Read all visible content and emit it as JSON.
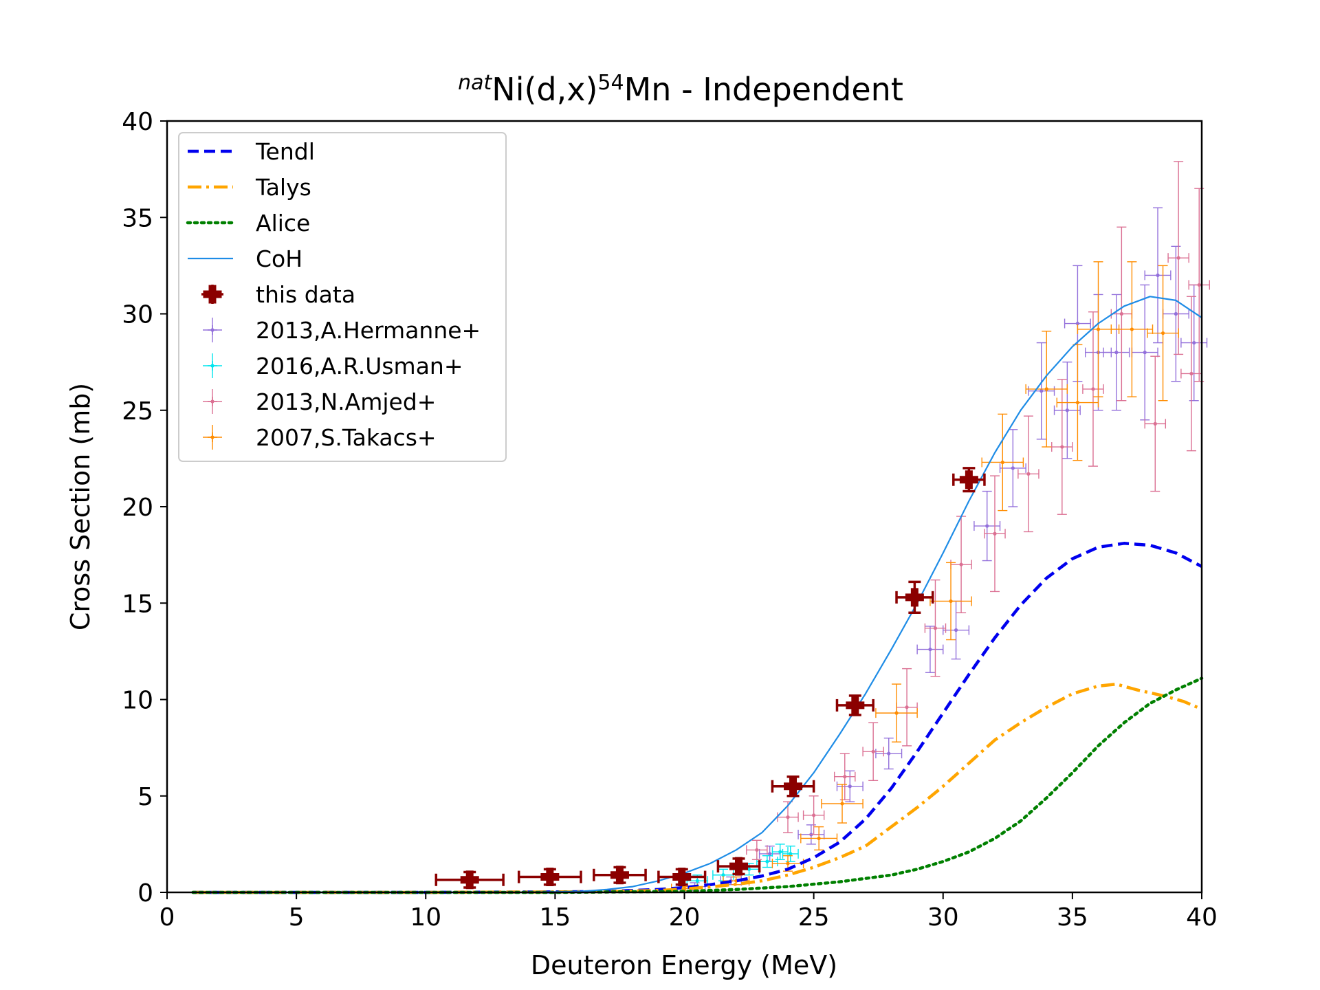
{
  "chart_data": {
    "type": "scatter",
    "title": {
      "pre": "nat",
      "mid": "Ni(d,x)",
      "iso": "54",
      "post": "Mn - Independent"
    },
    "xlabel": "Deuteron Energy (MeV)",
    "ylabel": "Cross Section (mb)",
    "xlim": [
      0,
      40
    ],
    "ylim": [
      0,
      40
    ],
    "xticks": [
      0,
      5,
      10,
      15,
      20,
      25,
      30,
      35,
      40
    ],
    "yticks": [
      0,
      5,
      10,
      15,
      20,
      25,
      30,
      35,
      40
    ],
    "grid": false,
    "legend_position": "top-left",
    "curves": [
      {
        "name": "Tendl",
        "style": "dashed",
        "color": "#0000ee",
        "points": [
          [
            1,
            0
          ],
          [
            10,
            0
          ],
          [
            15,
            0.02
          ],
          [
            17,
            0.05
          ],
          [
            19,
            0.15
          ],
          [
            20,
            0.25
          ],
          [
            21,
            0.4
          ],
          [
            22,
            0.6
          ],
          [
            23,
            0.85
          ],
          [
            24,
            1.2
          ],
          [
            25,
            1.8
          ],
          [
            26,
            2.6
          ],
          [
            27,
            3.8
          ],
          [
            28,
            5.4
          ],
          [
            29,
            7.3
          ],
          [
            30,
            9.3
          ],
          [
            31,
            11.3
          ],
          [
            32,
            13.2
          ],
          [
            33,
            14.9
          ],
          [
            34,
            16.3
          ],
          [
            35,
            17.3
          ],
          [
            36,
            17.9
          ],
          [
            37,
            18.1
          ],
          [
            38,
            18.0
          ],
          [
            39,
            17.6
          ],
          [
            40,
            16.9
          ]
        ]
      },
      {
        "name": "Talys",
        "style": "dashdot",
        "color": "#ffa500",
        "points": [
          [
            1,
            0
          ],
          [
            10,
            0
          ],
          [
            15,
            0.02
          ],
          [
            17,
            0.04
          ],
          [
            19,
            0.1
          ],
          [
            20,
            0.18
          ],
          [
            21,
            0.28
          ],
          [
            22,
            0.42
          ],
          [
            23,
            0.6
          ],
          [
            24,
            0.9
          ],
          [
            25,
            1.3
          ],
          [
            26,
            1.8
          ],
          [
            27,
            2.4
          ],
          [
            28,
            3.4
          ],
          [
            29,
            4.4
          ],
          [
            30,
            5.5
          ],
          [
            31,
            6.7
          ],
          [
            32,
            7.9
          ],
          [
            33,
            8.8
          ],
          [
            34,
            9.6
          ],
          [
            35,
            10.3
          ],
          [
            36,
            10.7
          ],
          [
            36.7,
            10.8
          ],
          [
            37.5,
            10.5
          ],
          [
            38.5,
            10.2
          ],
          [
            39.3,
            9.9
          ],
          [
            40,
            9.5
          ]
        ]
      },
      {
        "name": "Alice",
        "style": "dotted",
        "color": "#008000",
        "points": [
          [
            1,
            0
          ],
          [
            15,
            0
          ],
          [
            20,
            0.05
          ],
          [
            22,
            0.15
          ],
          [
            24,
            0.3
          ],
          [
            26,
            0.55
          ],
          [
            28,
            0.9
          ],
          [
            29,
            1.2
          ],
          [
            30,
            1.6
          ],
          [
            31,
            2.1
          ],
          [
            32,
            2.8
          ],
          [
            33,
            3.7
          ],
          [
            34,
            4.9
          ],
          [
            35,
            6.2
          ],
          [
            36,
            7.6
          ],
          [
            37,
            8.8
          ],
          [
            38,
            9.8
          ],
          [
            39,
            10.5
          ],
          [
            40,
            11.1
          ]
        ]
      },
      {
        "name": "CoH",
        "style": "solid",
        "color": "#1e8ce6",
        "points": [
          [
            1,
            0
          ],
          [
            14,
            0
          ],
          [
            16,
            0.05
          ],
          [
            17,
            0.15
          ],
          [
            18,
            0.3
          ],
          [
            19,
            0.6
          ],
          [
            20,
            1.0
          ],
          [
            21,
            1.5
          ],
          [
            22,
            2.2
          ],
          [
            23,
            3.1
          ],
          [
            24,
            4.5
          ],
          [
            25,
            6.2
          ],
          [
            26,
            8.2
          ],
          [
            27,
            10.3
          ],
          [
            28,
            12.6
          ],
          [
            29,
            15.0
          ],
          [
            30,
            17.6
          ],
          [
            31,
            20.3
          ],
          [
            32,
            22.8
          ],
          [
            33,
            25.0
          ],
          [
            34,
            26.8
          ],
          [
            35,
            28.3
          ],
          [
            36,
            29.5
          ],
          [
            37,
            30.4
          ],
          [
            38,
            30.9
          ],
          [
            39,
            30.7
          ],
          [
            40,
            29.8
          ]
        ]
      }
    ],
    "series": [
      {
        "name": "this data",
        "color": "#8b0000",
        "marker": "P",
        "big": true,
        "points": [
          [
            11.7,
            0.65,
            1.3,
            0.4
          ],
          [
            14.8,
            0.8,
            1.2,
            0.4
          ],
          [
            17.5,
            0.9,
            1.0,
            0.4
          ],
          [
            19.9,
            0.8,
            0.9,
            0.4
          ],
          [
            22.1,
            1.35,
            0.8,
            0.4
          ],
          [
            24.2,
            5.5,
            0.8,
            0.5
          ],
          [
            26.6,
            9.7,
            0.7,
            0.5
          ],
          [
            28.9,
            15.3,
            0.7,
            0.8
          ],
          [
            31.0,
            21.4,
            0.6,
            0.6
          ]
        ]
      },
      {
        "name": "2013,A.Hermanne+",
        "color": "#9370db",
        "marker": "dot",
        "points": [
          [
            20.4,
            0.3,
            0.4,
            0.2
          ],
          [
            21.8,
            0.6,
            0.4,
            0.2
          ],
          [
            23.3,
            2.0,
            0.4,
            0.4
          ],
          [
            24.9,
            3.0,
            0.5,
            0.5
          ],
          [
            26.4,
            5.5,
            0.5,
            0.8
          ],
          [
            27.9,
            7.2,
            0.5,
            0.8
          ],
          [
            29.5,
            12.6,
            0.5,
            1.2
          ],
          [
            30.5,
            13.6,
            0.5,
            1.5
          ],
          [
            31.7,
            19.0,
            0.5,
            1.8
          ],
          [
            32.7,
            22.0,
            0.5,
            2.0
          ],
          [
            33.8,
            26.0,
            0.5,
            2.5
          ],
          [
            34.8,
            25.0,
            0.5,
            2.5
          ],
          [
            36.0,
            28.0,
            0.5,
            3.0
          ],
          [
            36.7,
            28.0,
            0.5,
            3.0
          ],
          [
            38.3,
            32.0,
            0.5,
            3.5
          ],
          [
            37.8,
            28.0,
            0.5,
            3.5
          ],
          [
            39.0,
            30.0,
            0.5,
            3.5
          ],
          [
            39.7,
            28.5,
            0.5,
            3.0
          ],
          [
            35.2,
            29.5,
            0.5,
            3.0
          ]
        ]
      },
      {
        "name": "2016,A.R.Usman+",
        "color": "#00e5ee",
        "marker": "dot",
        "points": [
          [
            20.5,
            0.6,
            0.4,
            0.3
          ],
          [
            21.5,
            0.9,
            0.4,
            0.3
          ],
          [
            22.5,
            1.2,
            0.4,
            0.3
          ],
          [
            23.2,
            1.6,
            0.4,
            0.3
          ],
          [
            23.7,
            2.1,
            0.3,
            0.4
          ],
          [
            24.1,
            2.0,
            0.3,
            0.4
          ]
        ]
      },
      {
        "name": "2013,N.Amjed+",
        "color": "#db7093",
        "marker": "dot",
        "points": [
          [
            22.8,
            2.2,
            0.4,
            0.5
          ],
          [
            24.0,
            3.9,
            0.4,
            0.8
          ],
          [
            25.0,
            4.0,
            0.4,
            1.0
          ],
          [
            26.2,
            6.0,
            0.4,
            1.2
          ],
          [
            27.3,
            7.3,
            0.4,
            1.5
          ],
          [
            28.6,
            9.6,
            0.4,
            2.0
          ],
          [
            29.7,
            13.7,
            0.4,
            2.5
          ],
          [
            30.7,
            17.0,
            0.4,
            2.5
          ],
          [
            32.0,
            18.6,
            0.4,
            3.0
          ],
          [
            33.3,
            21.7,
            0.4,
            3.0
          ],
          [
            34.6,
            23.1,
            0.4,
            3.5
          ],
          [
            35.8,
            26.1,
            0.4,
            4.0
          ],
          [
            36.9,
            30.0,
            0.4,
            4.5
          ],
          [
            38.2,
            24.3,
            0.4,
            3.5
          ],
          [
            39.1,
            32.9,
            0.4,
            5.0
          ],
          [
            39.9,
            31.5,
            0.4,
            5.0
          ],
          [
            39.6,
            26.9,
            0.4,
            4.0
          ]
        ]
      },
      {
        "name": "2007,S.Takacs+",
        "color": "#ff8c00",
        "marker": "dot",
        "points": [
          [
            20.0,
            0.2,
            0.5,
            0.1
          ],
          [
            22.0,
            0.6,
            0.5,
            0.2
          ],
          [
            24.0,
            1.5,
            0.6,
            0.4
          ],
          [
            25.2,
            2.8,
            0.7,
            0.6
          ],
          [
            26.1,
            4.6,
            0.8,
            1.0
          ],
          [
            28.2,
            9.3,
            0.8,
            1.5
          ],
          [
            30.3,
            15.1,
            0.8,
            2.0
          ],
          [
            32.3,
            22.3,
            0.8,
            2.5
          ],
          [
            34.0,
            26.1,
            0.8,
            3.0
          ],
          [
            35.2,
            25.4,
            0.8,
            3.0
          ],
          [
            36.0,
            29.2,
            0.8,
            3.5
          ],
          [
            37.3,
            29.2,
            0.8,
            3.5
          ],
          [
            38.5,
            29.0,
            0.6,
            3.5
          ]
        ]
      }
    ]
  }
}
